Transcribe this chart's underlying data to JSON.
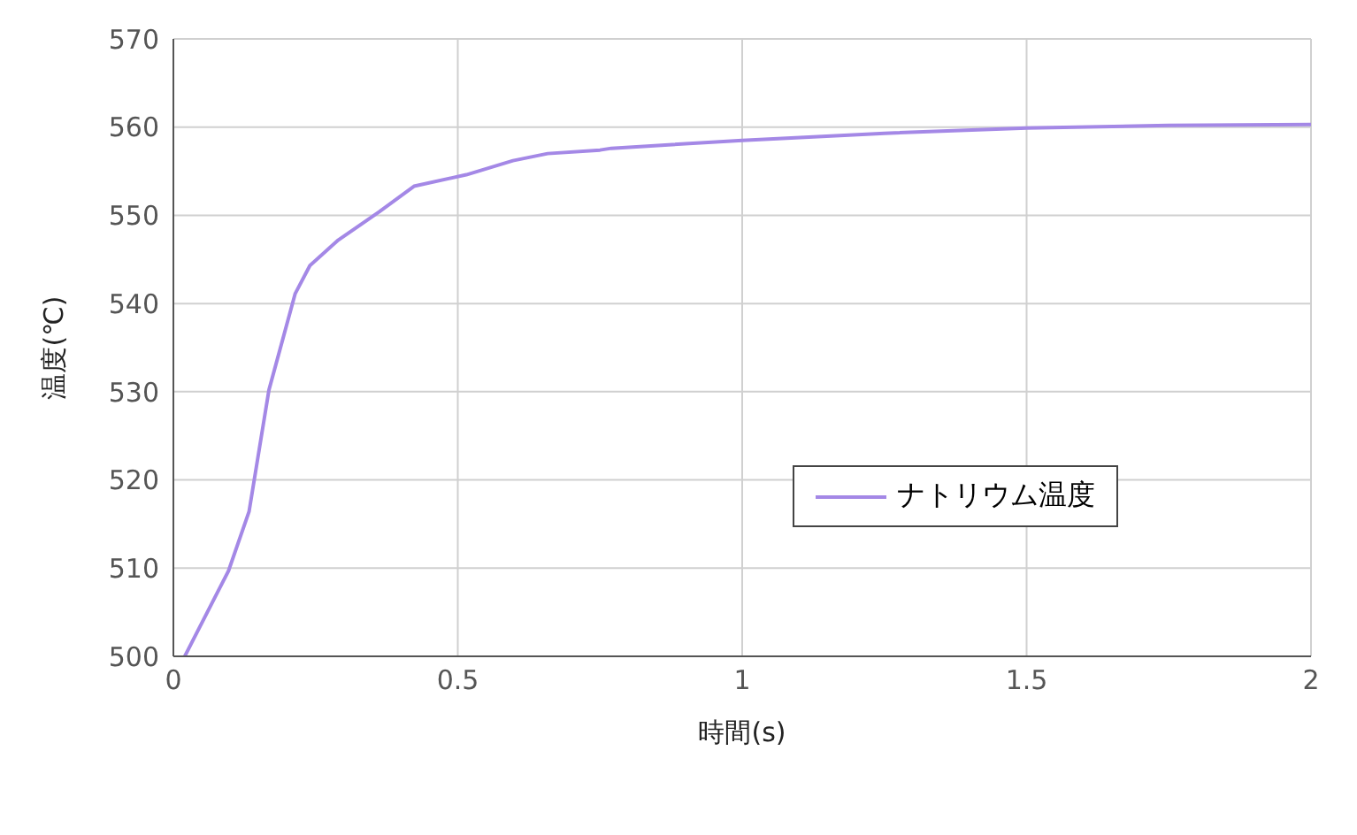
{
  "chart_data": {
    "type": "line",
    "xlabel": "時間(s)",
    "ylabel": "温度(℃)",
    "xlim": [
      0,
      2
    ],
    "xticks": [
      0,
      0.5,
      1,
      1.5,
      2
    ],
    "ylim": [
      500,
      570
    ],
    "yticks": [
      500,
      510,
      520,
      530,
      540,
      550,
      560,
      570
    ],
    "grid": true,
    "legend": "right",
    "marker": "none",
    "line_style": "solid",
    "series": [
      {
        "name": "ナトリウム温度",
        "color": "#a488e6",
        "x": [
          0.02,
          0.097,
          0.133,
          0.168,
          0.214,
          0.24,
          0.29,
          0.362,
          0.423,
          0.515,
          0.597,
          0.658,
          0.75,
          0.77,
          1.0,
          1.25,
          1.5,
          1.75,
          2.0
        ],
        "values": [
          500,
          509.7,
          516.4,
          530.2,
          541.1,
          544.3,
          547.2,
          550.4,
          553.3,
          554.6,
          556.2,
          557.0,
          557.4,
          557.6,
          558.5,
          559.3,
          559.9,
          560.2,
          560.3
        ]
      }
    ]
  }
}
